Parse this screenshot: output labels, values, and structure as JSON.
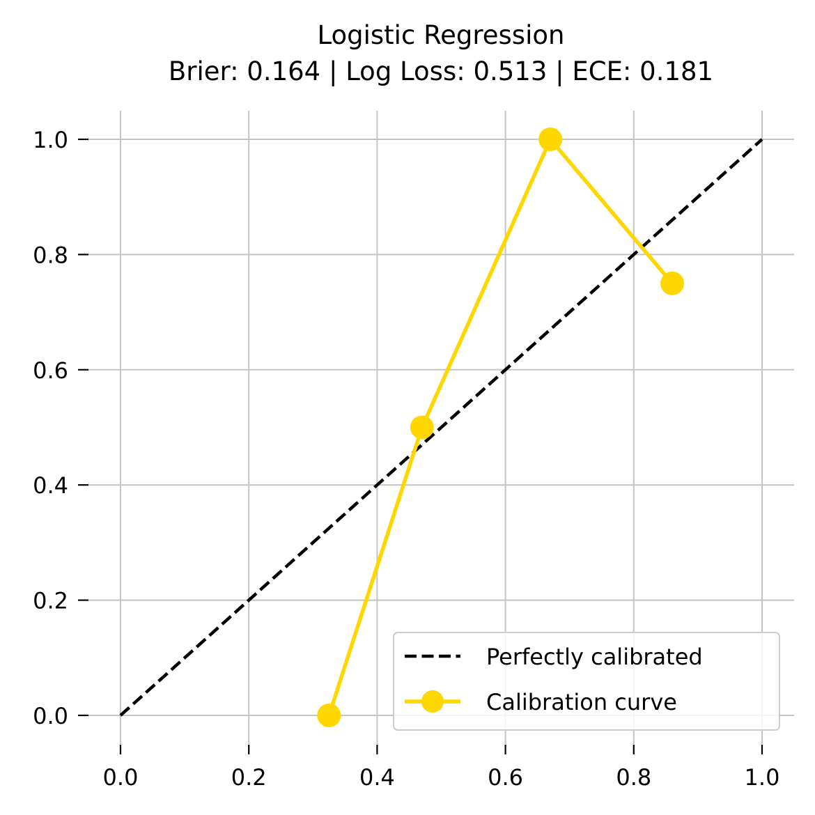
{
  "chart_data": {
    "type": "line",
    "title": "Logistic Regression",
    "subtitle": "Brier: 0.164 | Log Loss: 0.513 | ECE: 0.181",
    "xlabel": "",
    "ylabel": "",
    "xlim": [
      -0.05,
      1.05
    ],
    "ylim": [
      -0.05,
      1.05
    ],
    "xticks": [
      0.0,
      0.2,
      0.4,
      0.6,
      0.8,
      1.0
    ],
    "yticks": [
      0.0,
      0.2,
      0.4,
      0.6,
      0.8,
      1.0
    ],
    "xtick_labels": [
      "0.0",
      "0.2",
      "0.4",
      "0.6",
      "0.8",
      "1.0"
    ],
    "ytick_labels": [
      "0.0",
      "0.2",
      "0.4",
      "0.6",
      "0.8",
      "1.0"
    ],
    "grid": true,
    "legend_position": "lower-right",
    "series": [
      {
        "name": "Perfectly calibrated",
        "style": "dashed",
        "color": "#000000",
        "x": [
          0.0,
          1.0
        ],
        "y": [
          0.0,
          1.0
        ]
      },
      {
        "name": "Calibration curve",
        "style": "solid-marker",
        "color": "#FFD700",
        "x": [
          0.325,
          0.47,
          0.67,
          0.86
        ],
        "y": [
          0.0,
          0.5,
          1.0,
          0.75
        ]
      }
    ]
  }
}
